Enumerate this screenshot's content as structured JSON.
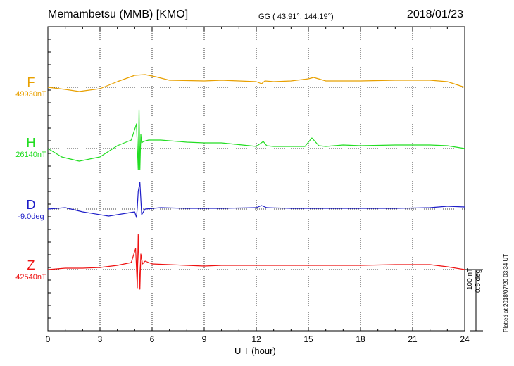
{
  "header": {
    "station": "Memambetsu (MMB)  [KMO]",
    "coords": "GG ( 43.91°, 144.19°)",
    "date": "2018/01/23"
  },
  "chart_data": {
    "type": "line",
    "xlabel": "U T (hour)",
    "xlim": [
      0,
      24
    ],
    "xticks": [
      0,
      3,
      6,
      9,
      12,
      15,
      18,
      21,
      24
    ],
    "grid": true,
    "scale": {
      "nt": "100 nT",
      "deg": "0.5 deg"
    },
    "series": [
      {
        "name": "F",
        "baseline": "49930nT",
        "color": "#e8a000",
        "x": [
          0,
          1,
          1.8,
          3,
          4,
          5,
          5.6,
          6.2,
          7,
          9,
          10,
          12,
          12.3,
          12.5,
          13,
          14,
          15,
          15.3,
          16,
          18,
          20,
          22,
          23,
          24
        ],
        "y": [
          0,
          -3,
          -6,
          -2,
          8,
          17,
          18,
          15,
          10,
          9,
          10,
          8,
          5,
          9,
          8,
          9,
          12,
          14,
          9,
          9,
          10,
          10,
          8,
          0
        ]
      },
      {
        "name": "H",
        "baseline": "26140nT",
        "color": "#22dd22",
        "x": [
          0,
          0.8,
          1.8,
          3,
          4,
          4.8,
          5.1,
          5.2,
          5.25,
          5.3,
          5.35,
          5.4,
          5.5,
          5.8,
          6.5,
          8,
          9,
          10,
          12,
          12.4,
          12.6,
          13,
          14,
          14.8,
          15.2,
          15.6,
          16,
          17,
          18,
          20,
          22,
          23,
          24
        ],
        "y": [
          0,
          -12,
          -18,
          -12,
          4,
          12,
          35,
          -30,
          55,
          -30,
          20,
          8,
          10,
          12,
          12,
          9,
          8,
          8,
          3,
          10,
          4,
          3,
          3,
          3,
          15,
          4,
          3,
          5,
          4,
          5,
          5,
          4,
          0
        ]
      },
      {
        "name": "D",
        "baseline": "-9.0deg",
        "color": "#1e1ec8",
        "x": [
          0,
          1,
          2,
          3.5,
          4.5,
          5.0,
          5.1,
          5.15,
          5.2,
          5.3,
          5.4,
          5.6,
          6.5,
          8,
          10,
          12,
          12.3,
          12.6,
          14,
          16,
          18,
          20,
          22,
          23,
          24
        ],
        "y": [
          0,
          2,
          -4,
          -10,
          -6,
          -4,
          -12,
          2,
          25,
          38,
          -8,
          0,
          2,
          1,
          1,
          2,
          5,
          2,
          1,
          1,
          1,
          1,
          2,
          4,
          3
        ]
      },
      {
        "name": "Z",
        "baseline": "42540nT",
        "color": "#ee1111",
        "x": [
          0,
          1,
          2,
          3,
          4,
          4.8,
          5.05,
          5.15,
          5.2,
          5.3,
          5.35,
          5.45,
          5.6,
          6,
          8,
          9,
          10,
          12,
          14,
          16,
          18,
          20,
          21,
          22,
          23,
          24
        ],
        "y": [
          0,
          2,
          2,
          3,
          6,
          10,
          30,
          -26,
          50,
          -28,
          22,
          8,
          12,
          8,
          6,
          5,
          6,
          6,
          6,
          6,
          6,
          7,
          7,
          7,
          4,
          0
        ]
      }
    ]
  },
  "footer": {
    "plotted": "Plotted at 2018/07/20 03:34 UT"
  }
}
